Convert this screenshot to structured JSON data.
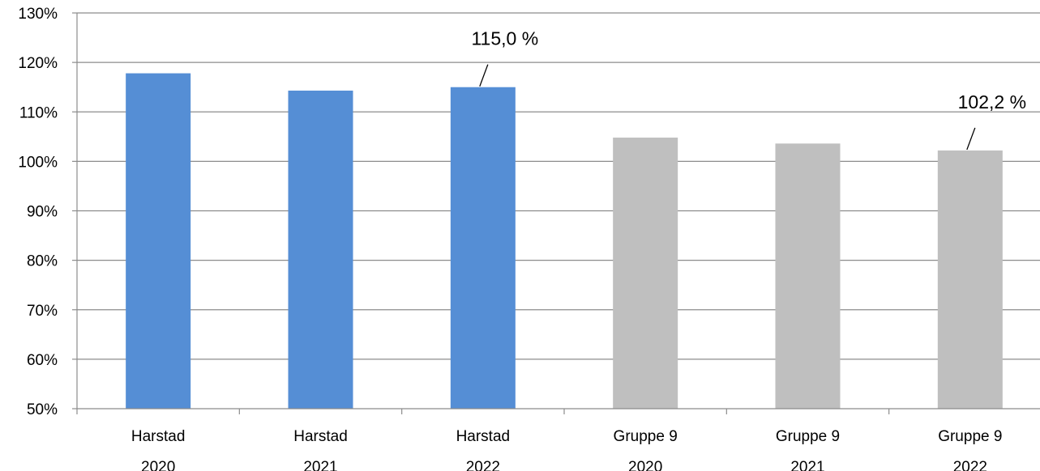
{
  "chart_data": {
    "type": "bar",
    "categories": [
      [
        "Harstad",
        "2020"
      ],
      [
        "Harstad",
        "2021"
      ],
      [
        "Harstad",
        "2022"
      ],
      [
        "Gruppe 9",
        "2020"
      ],
      [
        "Gruppe 9",
        "2021"
      ],
      [
        "Gruppe 9",
        "2022"
      ]
    ],
    "values": [
      117.8,
      114.3,
      115.0,
      104.8,
      103.6,
      102.2
    ],
    "colors": [
      "#558ed5",
      "#558ed5",
      "#558ed5",
      "#bfbfbf",
      "#bfbfbf",
      "#bfbfbf"
    ],
    "data_labels": [
      {
        "index": 2,
        "text": "115,0 %"
      },
      {
        "index": 5,
        "text": "102,2 %"
      }
    ],
    "y_ticks": [
      "50%",
      "60%",
      "70%",
      "80%",
      "90%",
      "100%",
      "110%",
      "120%",
      "130%"
    ],
    "ylim": [
      50,
      130
    ],
    "grid": true,
    "title": "",
    "xlabel": "",
    "ylabel": ""
  }
}
